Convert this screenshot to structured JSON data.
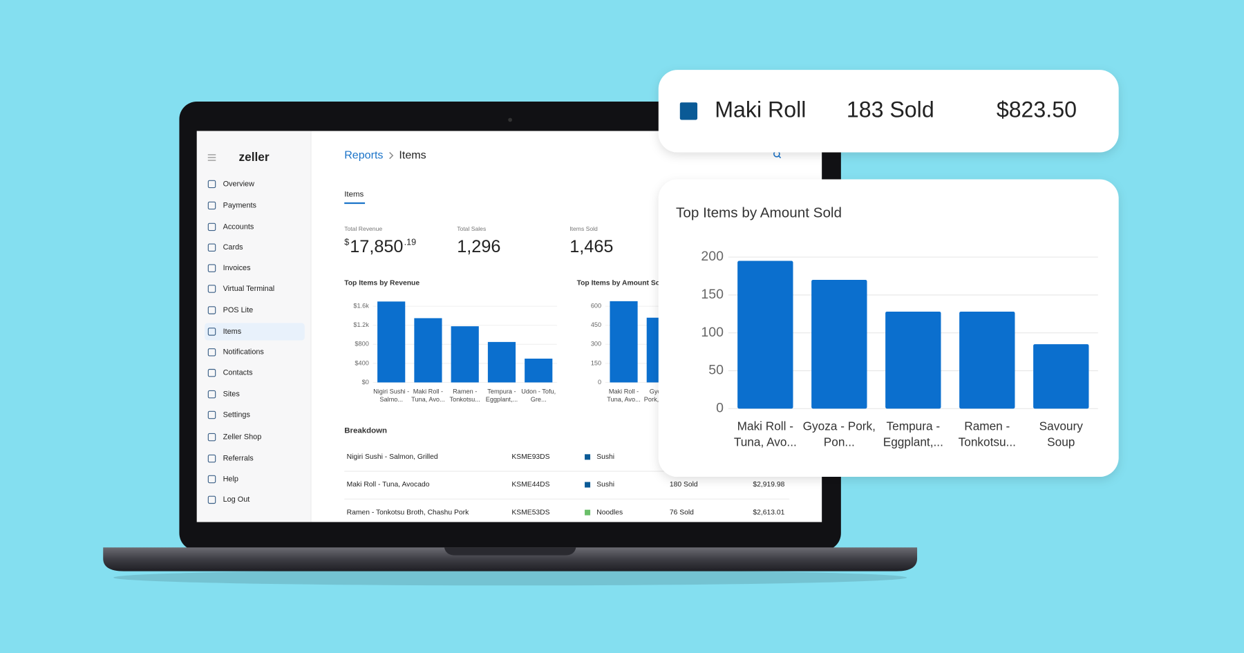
{
  "sidebar": {
    "logo": "zeller",
    "items": [
      "Overview",
      "Payments",
      "Accounts",
      "Cards",
      "Invoices",
      "Virtual Terminal",
      "POS Lite",
      "Items",
      "Notifications",
      "Contacts",
      "Sites",
      "Settings",
      "Zeller Shop",
      "Referrals",
      "Help",
      "Log Out"
    ]
  },
  "header": {
    "breadcrumb": [
      "Reports",
      "Items"
    ]
  },
  "tabs": [
    "Items"
  ],
  "stats": [
    {
      "label": "Total Revenue",
      "currency": "$",
      "value": "17,850",
      "cents": ".19"
    },
    {
      "label": "Total Sales",
      "value": "1,296"
    },
    {
      "label": "Items Sold",
      "value": "1,465"
    }
  ],
  "chart_data": [
    {
      "type": "bar",
      "title": "Top Items by Revenue",
      "color": "#0b6fce",
      "grid": true,
      "categories": [
        "Nigiri Sushi - Salmo...",
        "Maki Roll - Tuna, Avo...",
        "Ramen - Tonkotsu...",
        "Tempura - Eggplant,...",
        "Udon - Tofu, Gre..."
      ],
      "values": [
        1700,
        1350,
        1180,
        850,
        500
      ],
      "ylim": [
        0,
        1600
      ],
      "yticks": [
        {
          "value": 0,
          "label": "$0"
        },
        {
          "value": 400,
          "label": "$400"
        },
        {
          "value": 800,
          "label": "$800"
        },
        {
          "value": 1200,
          "label": "$1.2k"
        },
        {
          "value": 1600,
          "label": "$1.6k"
        }
      ]
    },
    {
      "type": "bar",
      "title": "Top Items by Amount Sold",
      "color": "#0b6fce",
      "grid": true,
      "categories": [
        "Maki Roll - Tuna, Avo...",
        "Gyoza - Pork, Pon..."
      ],
      "values": [
        640,
        510
      ],
      "ylim": [
        0,
        600
      ],
      "yticks": [
        0,
        150,
        300,
        450,
        600
      ]
    },
    {
      "type": "bar",
      "title": "Top Items by Amount Sold",
      "color": "#0b6fce",
      "grid": true,
      "categories": [
        "Maki Roll - Tuna, Avo...",
        "Gyoza - Pork, Pon...",
        "Tempura - Eggplant,...",
        "Ramen - Tonkotsu...",
        "Savoury Soup"
      ],
      "values": [
        195,
        170,
        128,
        128,
        85
      ],
      "ylim": [
        0,
        200
      ],
      "yticks": [
        0,
        50,
        100,
        150,
        200
      ]
    }
  ],
  "breakdown": {
    "title": "Breakdown",
    "rows": [
      {
        "item": "Nigiri Sushi - Salmon, Grilled",
        "sku": "KSME93DS",
        "category": "Sushi",
        "category_color": "#0a5a96"
      },
      {
        "item": "Maki Roll - Tuna, Avocado",
        "sku": "KSME44DS",
        "category": "Sushi",
        "category_color": "#0a5a96",
        "sold": "180 Sold",
        "revenue": "$2,919.98"
      },
      {
        "item": "Ramen - Tonkotsu Broth, Chashu Pork",
        "sku": "KSME53DS",
        "category": "Noodles",
        "category_color": "#6abf69",
        "sold": "76 Sold",
        "revenue": "$2,613.01"
      }
    ]
  },
  "tooltip": {
    "name": "Maki Roll",
    "sold": "183 Sold",
    "revenue": "$823.50",
    "color": "#0a5a96"
  }
}
